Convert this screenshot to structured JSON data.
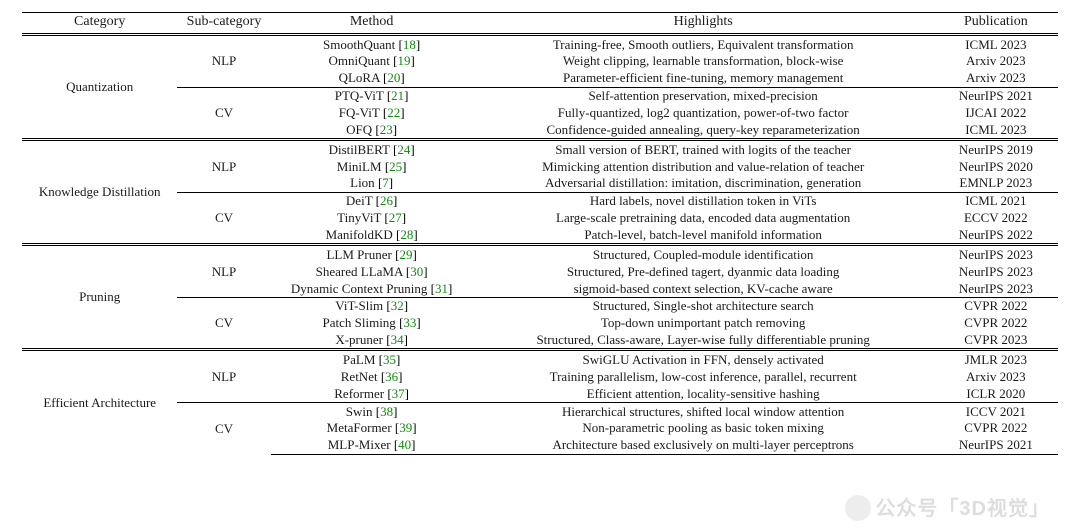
{
  "columns": [
    "Category",
    "Sub-category",
    "Method",
    "Highlights",
    "Publication"
  ],
  "refColor": "#108a10",
  "groups": [
    {
      "category": "Quantization",
      "subs": [
        {
          "sub": "NLP",
          "rows": [
            {
              "method": "SmoothQuant",
              "ref": "18",
              "hl": "Training-free, Smooth outliers, Equivalent transformation",
              "pub": "ICML 2023"
            },
            {
              "method": "OmniQuant",
              "ref": "19",
              "hl": "Weight clipping, learnable transformation, block-wise",
              "pub": "Arxiv 2023"
            },
            {
              "method": "QLoRA",
              "ref": "20",
              "hl": "Parameter-efficient fine-tuning, memory management",
              "pub": "Arxiv 2023"
            }
          ]
        },
        {
          "sub": "CV",
          "rows": [
            {
              "method": "PTQ-ViT",
              "ref": "21",
              "hl": "Self-attention preservation, mixed-precision",
              "pub": "NeurIPS 2021"
            },
            {
              "method": "FQ-ViT",
              "ref": "22",
              "hl": "Fully-quantized, log2 quantization, power-of-two factor",
              "pub": "IJCAI 2022"
            },
            {
              "method": "OFQ",
              "ref": "23",
              "hl": "Confidence-guided annealing, query-key reparameterization",
              "pub": "ICML 2023"
            }
          ]
        }
      ]
    },
    {
      "category": "Knowledge Distillation",
      "subs": [
        {
          "sub": "NLP",
          "rows": [
            {
              "method": "DistilBERT",
              "ref": "24",
              "hl": "Small version of BERT, trained with logits of the teacher",
              "pub": "NeurIPS 2019"
            },
            {
              "method": "MiniLM",
              "ref": "25",
              "hl": "Mimicking attention distribution and value-relation of teacher",
              "pub": "NeurIPS 2020"
            },
            {
              "method": "Lion",
              "ref": "7",
              "hl": "Adversarial distillation: imitation, discrimination, generation",
              "pub": "EMNLP 2023"
            }
          ]
        },
        {
          "sub": "CV",
          "rows": [
            {
              "method": "DeiT",
              "ref": "26",
              "hl": "Hard labels, novel distillation token in ViTs",
              "pub": "ICML 2021"
            },
            {
              "method": "TinyViT",
              "ref": "27",
              "hl": "Large-scale pretraining data, encoded data augmentation",
              "pub": "ECCV 2022"
            },
            {
              "method": "ManifoldKD",
              "ref": "28",
              "hl": "Patch-level, batch-level manifold information",
              "pub": "NeurIPS 2022"
            }
          ]
        }
      ]
    },
    {
      "category": "Pruning",
      "subs": [
        {
          "sub": "NLP",
          "rows": [
            {
              "method": "LLM Pruner",
              "ref": "29",
              "hl": "Structured, Coupled-module identification",
              "pub": "NeurIPS 2023"
            },
            {
              "method": "Sheared LLaMA",
              "ref": "30",
              "hl": "Structured, Pre-defined tagert, dyanmic data loading",
              "pub": "NeurIPS 2023"
            },
            {
              "method": "Dynamic Context Pruning",
              "ref": "31",
              "hl": "sigmoid-based context selection, KV-cache aware",
              "pub": "NeurIPS 2023"
            }
          ]
        },
        {
          "sub": "CV",
          "rows": [
            {
              "method": "ViT-Slim",
              "ref": "32",
              "hl": "Structured, Single-shot architecture search",
              "pub": "CVPR 2022"
            },
            {
              "method": "Patch Sliming",
              "ref": "33",
              "hl": "Top-down unimportant patch removing",
              "pub": "CVPR 2022"
            },
            {
              "method": "X-pruner",
              "ref": "34",
              "hl": "Structured, Class-aware, Layer-wise fully differentiable pruning",
              "pub": "CVPR 2023"
            }
          ]
        }
      ]
    },
    {
      "category": "Efficient Architecture",
      "subs": [
        {
          "sub": "NLP",
          "rows": [
            {
              "method": "PaLM",
              "ref": "35",
              "hl": "SwiGLU Activation in FFN, densely activated",
              "pub": "JMLR 2023"
            },
            {
              "method": "RetNet",
              "ref": "36",
              "hl": "Training parallelism, low-cost inference, parallel, recurrent",
              "pub": "Arxiv 2023"
            },
            {
              "method": "Reformer",
              "ref": "37",
              "hl": "Efficient attention, locality-sensitive hashing",
              "pub": "ICLR 2020"
            }
          ]
        },
        {
          "sub": "CV",
          "rows": [
            {
              "method": "Swin",
              "ref": "38",
              "hl": "Hierarchical structures, shifted local window attention",
              "pub": "ICCV 2021"
            },
            {
              "method": "MetaFormer",
              "ref": "39",
              "hl": "Non-parametric pooling as basic token mixing",
              "pub": "CVPR 2022"
            },
            {
              "method": "MLP-Mixer",
              "ref": "40",
              "hl": "Architecture based exclusively on multi-layer perceptrons",
              "pub": "NeurIPS 2021"
            }
          ]
        }
      ]
    }
  ],
  "watermark": "公众号「3D视觉」"
}
